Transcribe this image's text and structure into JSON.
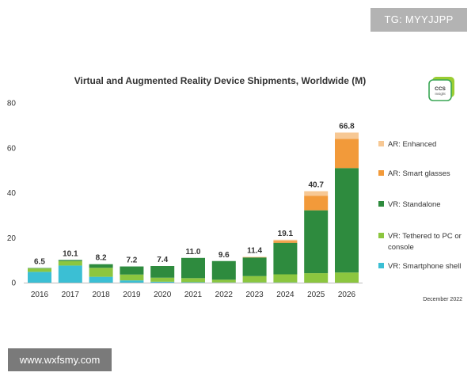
{
  "watermarks": {
    "top": "TG: MYYJJPP",
    "bottom": "www.wxfsmy.com"
  },
  "logo": {
    "line1": "CCS",
    "line2": "Insight"
  },
  "chart_data": {
    "type": "bar",
    "stacked": true,
    "title": "Virtual and Augmented Reality Device Shipments, Worldwide (M)",
    "note": "December 2022",
    "xlabel": "",
    "ylabel": "",
    "ylim": [
      0,
      80
    ],
    "yticks": [
      0,
      20,
      40,
      60,
      80
    ],
    "grid": false,
    "legend_position": "right",
    "categories": [
      "2016",
      "2017",
      "2018",
      "2019",
      "2020",
      "2021",
      "2022",
      "2023",
      "2024",
      "2025",
      "2026"
    ],
    "totals": [
      "6.5",
      "10.1",
      "8.2",
      "7.2",
      "7.4",
      "11.0",
      "9.6",
      "11.4",
      "19.1",
      "40.7",
      "66.8"
    ],
    "series": [
      {
        "name": "VR: Smartphone shell",
        "color": "#3bbfd4",
        "values": [
          4.8,
          7.6,
          2.6,
          1.0,
          0.4,
          0.2,
          0.1,
          0.1,
          0.1,
          0.0,
          0.0
        ]
      },
      {
        "name": "VR: Tethered to PC or console",
        "color": "#8cc63f",
        "values": [
          1.5,
          2.0,
          4.0,
          2.6,
          1.8,
          1.8,
          1.2,
          2.8,
          3.6,
          4.2,
          4.5
        ]
      },
      {
        "name": "VR: Standalone",
        "color": "#2e8b3e",
        "values": [
          0.2,
          0.5,
          1.6,
          3.6,
          5.2,
          9.0,
          8.3,
          8.3,
          14.0,
          28.0,
          46.5
        ]
      },
      {
        "name": "AR: Smart glasses",
        "color": "#f29a3a",
        "values": [
          0.0,
          0.0,
          0.0,
          0.0,
          0.0,
          0.0,
          0.0,
          0.2,
          0.8,
          6.5,
          13.0
        ]
      },
      {
        "name": "AR: Enhanced",
        "color": "#f7c894",
        "values": [
          0.0,
          0.0,
          0.0,
          0.0,
          0.0,
          0.0,
          0.0,
          0.0,
          0.6,
          2.0,
          2.8
        ]
      }
    ]
  }
}
